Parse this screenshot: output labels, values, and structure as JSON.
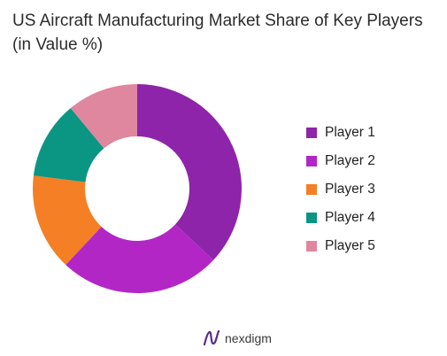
{
  "chart_data": {
    "type": "pie",
    "title": "US Aircraft Manufacturing Market Share of Key Players (in Value %)",
    "categories": [
      "Player 1",
      "Player 2",
      "Player 3",
      "Player 4",
      "Player 5"
    ],
    "values": [
      37,
      25,
      15,
      12,
      11
    ],
    "colors": [
      "#8e24aa",
      "#b226c6",
      "#f47f24",
      "#0a9683",
      "#de879e"
    ],
    "legend": "right",
    "donut": true
  },
  "brand": {
    "text": "nexdigm",
    "icon": "nexdigm-logo-icon",
    "color": "#5b2a86"
  }
}
